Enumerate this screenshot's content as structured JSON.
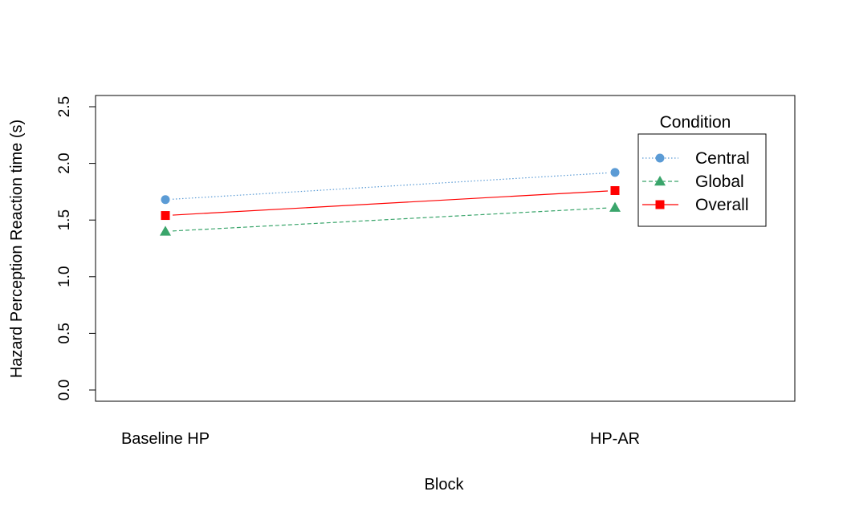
{
  "chart_data": {
    "type": "line",
    "xlabel": "Block",
    "ylabel": "Hazard Perception Reaction time (s)",
    "categories": [
      "Baseline HP",
      "HP-AR"
    ],
    "ylim": [
      0,
      2.5
    ],
    "yticks": [
      "0.0",
      "0.5",
      "1.0",
      "1.5",
      "2.0",
      "2.5"
    ],
    "grid": false,
    "legend": {
      "title": "Condition",
      "placement": "top-right"
    },
    "series": [
      {
        "name": "Central",
        "values": [
          1.68,
          1.92
        ],
        "color": "#5b9bd5",
        "marker": "circle",
        "line": "dotted"
      },
      {
        "name": "Global",
        "values": [
          1.4,
          1.61
        ],
        "color": "#3aa56b",
        "marker": "triangle",
        "line": "dashed"
      },
      {
        "name": "Overall",
        "values": [
          1.54,
          1.76
        ],
        "color": "#ff0000",
        "marker": "square",
        "line": "solid"
      }
    ]
  }
}
